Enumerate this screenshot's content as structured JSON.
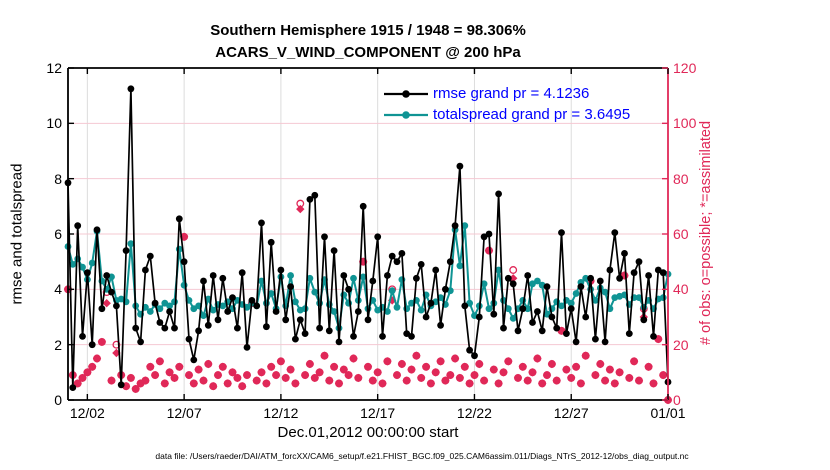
{
  "title": {
    "line1": "Southern Hemisphere 1915 / 1948 = 98.306%",
    "line2": "ACARS_V_WIND_COMPONENT @ 200 hPa"
  },
  "footer": {
    "data_file": "data file: /Users/raeder/DAI/ATM_forcXX/CAM6_setup/f.e21.FHIST_BGC.f09_025.CAM6assim.011/Diags_NTrS_2012-12/obs_diag_output.nc"
  },
  "chart_data": {
    "type": "line",
    "title": "Southern Hemisphere 1915 / 1948 = 98.306%",
    "subtitle": "ACARS_V_WIND_COMPONENT @ 200 hPa",
    "xlabel": "Dec.01,2012 00:00:00 start",
    "ylabel_left": "rmse and totalspread",
    "ylabel_right": "# of obs: o=possible; *=assimilated",
    "ylim_left": [
      0,
      12
    ],
    "yticks_left": [
      0,
      2,
      4,
      6,
      8,
      10,
      12
    ],
    "ylim_right": [
      0,
      120
    ],
    "yticks_right": [
      0,
      20,
      40,
      60,
      80,
      100,
      120
    ],
    "x_range_days": [
      0,
      31
    ],
    "x_tick_days": [
      1,
      6,
      11,
      16,
      21,
      26,
      31
    ],
    "x_tick_labels": [
      "12/02",
      "12/07",
      "12/12",
      "12/17",
      "12/22",
      "12/27",
      "01/01"
    ],
    "time_step_days": 0.25,
    "time_start": "Dec.01,2012 00:00:00",
    "grid": true,
    "legend_position": "top-right-inside",
    "colors": {
      "rmse": "#000000",
      "totalspread": "#0F9494",
      "obs": "#E02858",
      "legend_text": "#0000FF",
      "grid_vertical": "#DCDCDC",
      "grid_horizontal": "#F5C8D2",
      "axis_left": "#000000",
      "axis_right": "#E02858"
    },
    "series": [
      {
        "name": "rmse grand pr = 4.1236",
        "axis": "left",
        "color": "#000000",
        "marker": "circle",
        "line": true,
        "values": [
          7.85,
          0.45,
          6.3,
          2.3,
          4.6,
          2.0,
          6.15,
          3.3,
          4.5,
          3.9,
          3.4,
          0.55,
          5.4,
          11.25,
          2.6,
          2.1,
          4.7,
          5.2,
          3.5,
          2.8,
          2.6,
          3.2,
          2.6,
          6.55,
          5.0,
          2.2,
          1.45,
          2.5,
          4.3,
          2.7,
          4.5,
          2.9,
          4.4,
          3.2,
          3.7,
          2.6,
          4.6,
          1.9,
          3.6,
          3.4,
          6.4,
          2.65,
          5.7,
          3.2,
          4.7,
          2.9,
          4.1,
          2.2,
          2.9,
          2.4,
          7.25,
          7.4,
          2.6,
          5.9,
          2.5,
          5.4,
          2.1,
          4.5,
          4.0,
          2.3,
          3.2,
          7.0,
          2.9,
          4.3,
          5.9,
          2.3,
          4.5,
          5.2,
          5.0,
          5.3,
          2.4,
          2.3,
          4.4,
          4.9,
          3.0,
          3.5,
          4.7,
          2.7,
          4.0,
          5.0,
          6.3,
          8.45,
          3.4,
          1.8,
          1.6,
          3.0,
          5.9,
          6.0,
          3.1,
          7.45,
          2.6,
          4.4,
          4.2,
          2.5,
          3.3,
          4.5,
          2.8,
          3.2,
          2.5,
          4.1,
          3.0,
          2.6,
          6.05,
          2.4,
          3.3,
          2.1,
          4.1,
          3.0,
          4.4,
          2.2,
          4.3,
          2.1,
          4.7,
          6.05,
          4.4,
          5.3,
          2.4,
          4.6,
          5.0,
          2.9,
          4.5,
          2.3,
          4.7,
          4.6,
          0.65
        ]
      },
      {
        "name": "totalspread grand pr = 3.6495",
        "axis": "left",
        "color": "#0F9494",
        "marker": "circle",
        "line": true,
        "values": [
          5.55,
          4.9,
          5.1,
          4.8,
          4.35,
          4.95,
          6.1,
          4.3,
          4.0,
          4.45,
          3.6,
          3.65,
          3.55,
          5.65,
          3.4,
          3.1,
          3.35,
          3.2,
          3.45,
          3.3,
          3.5,
          3.4,
          3.55,
          5.45,
          4.15,
          3.6,
          3.3,
          3.4,
          3.05,
          3.65,
          3.25,
          3.45,
          3.4,
          3.55,
          3.3,
          3.6,
          3.45,
          3.35,
          3.5,
          3.4,
          4.3,
          3.5,
          3.85,
          3.3,
          4.45,
          3.4,
          4.5,
          3.55,
          3.25,
          3.3,
          4.4,
          3.9,
          3.5,
          4.35,
          3.45,
          3.2,
          2.6,
          3.8,
          3.5,
          4.4,
          3.6,
          4.45,
          3.3,
          3.6,
          3.25,
          3.35,
          3.2,
          3.95,
          3.35,
          4.35,
          3.3,
          3.5,
          3.6,
          3.25,
          3.8,
          3.4,
          3.55,
          3.7,
          3.45,
          3.95,
          6.15,
          4.85,
          6.3,
          3.5,
          3.05,
          3.4,
          4.2,
          3.3,
          3.5,
          4.7,
          3.6,
          3.3,
          2.95,
          3.3,
          3.6,
          3.3,
          4.2,
          4.3,
          4.15,
          3.1,
          3.3,
          3.55,
          3.4,
          3.6,
          3.5,
          3.85,
          4.25,
          4.4,
          4.0,
          3.6,
          4.05,
          3.9,
          3.3,
          3.7,
          3.75,
          3.8,
          3.45,
          3.7,
          3.7,
          3.35,
          3.6,
          3.3,
          3.65,
          3.7,
          4.55
        ]
      },
      {
        "name": "# of obs possible (o)",
        "axis": "right",
        "color": "#E02858",
        "marker": "open-circle",
        "line": false,
        "values": [
          40,
          9,
          6,
          8,
          10,
          12,
          15,
          21,
          39,
          7,
          20,
          9,
          5,
          8,
          4,
          6,
          7,
          12,
          9,
          14,
          6,
          10,
          8,
          12,
          59,
          9,
          6,
          11,
          7,
          13,
          5,
          9,
          12,
          6,
          10,
          8,
          5,
          9,
          35,
          7,
          10,
          6,
          12,
          9,
          14,
          8,
          11,
          6,
          71,
          9,
          13,
          8,
          10,
          16,
          7,
          12,
          6,
          11,
          9,
          15,
          8,
          50,
          12,
          7,
          10,
          6,
          14,
          40,
          9,
          13,
          7,
          11,
          16,
          8,
          12,
          6,
          10,
          14,
          7,
          9,
          15,
          8,
          12,
          6,
          9,
          13,
          7,
          54,
          11,
          6,
          10,
          14,
          47,
          8,
          12,
          7,
          10,
          15,
          6,
          9,
          13,
          7,
          25,
          11,
          8,
          12,
          6,
          16,
          43,
          9,
          13,
          7,
          11,
          6,
          10,
          45,
          8,
          14,
          7,
          33,
          12,
          6,
          22,
          9,
          0
        ]
      },
      {
        "name": "# of obs assimilated (*)",
        "axis": "right",
        "color": "#E02858",
        "marker": "asterisk",
        "line": false,
        "values": [
          40,
          9,
          6,
          8,
          10,
          12,
          15,
          21,
          35,
          7,
          17,
          9,
          5,
          8,
          4,
          6,
          7,
          12,
          9,
          14,
          6,
          10,
          8,
          12,
          59,
          9,
          6,
          11,
          7,
          13,
          5,
          9,
          12,
          6,
          10,
          8,
          5,
          9,
          35,
          7,
          10,
          6,
          12,
          9,
          14,
          8,
          11,
          6,
          69,
          9,
          13,
          8,
          10,
          16,
          7,
          12,
          6,
          11,
          9,
          15,
          8,
          50,
          12,
          7,
          10,
          6,
          14,
          36,
          9,
          13,
          7,
          11,
          16,
          8,
          12,
          6,
          10,
          14,
          7,
          9,
          15,
          8,
          12,
          6,
          9,
          13,
          7,
          54,
          11,
          6,
          10,
          14,
          44,
          8,
          12,
          7,
          10,
          15,
          6,
          9,
          13,
          7,
          25,
          11,
          8,
          12,
          6,
          16,
          43,
          9,
          13,
          7,
          11,
          6,
          10,
          45,
          8,
          14,
          7,
          30,
          12,
          6,
          22,
          9,
          0
        ]
      }
    ]
  }
}
